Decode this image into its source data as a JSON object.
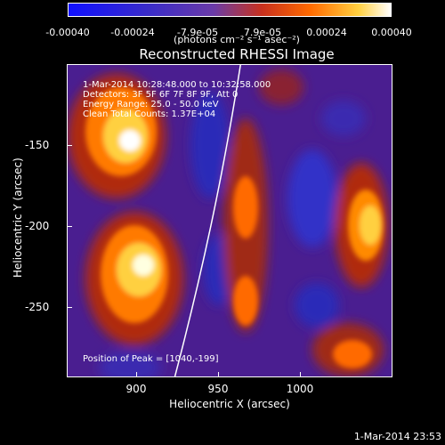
{
  "colorbar": {
    "ticks": [
      "-0.00040",
      "-0.00024",
      "-7.9e-05",
      "7.9e-05",
      "0.00024",
      "0.00040"
    ],
    "unit": "(photons cm⁻² s⁻¹ asec⁻²)"
  },
  "title": "Reconstructed RHESSI Image",
  "info": {
    "time": "1-Mar-2014 10:28:48.000 to 10:32:58.000",
    "detectors": "Detectors: 3F 5F 6F 7F 8F 9F, Att 0",
    "energy": "Energy Range: 25.0 - 50.0 keV",
    "clean": "Clean    Total Counts: 1.37E+04",
    "peak": "Position of Peak = [1040,-199]"
  },
  "axes": {
    "xlabel": "Heliocentric X (arcsec)",
    "ylabel": "Heliocentric Y (arcsec)",
    "xticks": [
      "900",
      "950",
      "1000"
    ],
    "yticks": [
      "-150",
      "-200",
      "-250"
    ]
  },
  "timestamp": "1-Mar-2014 23:53",
  "colors": {
    "background": "#000000",
    "plot_base": "#4a1e90",
    "limb": "#ffffff"
  }
}
